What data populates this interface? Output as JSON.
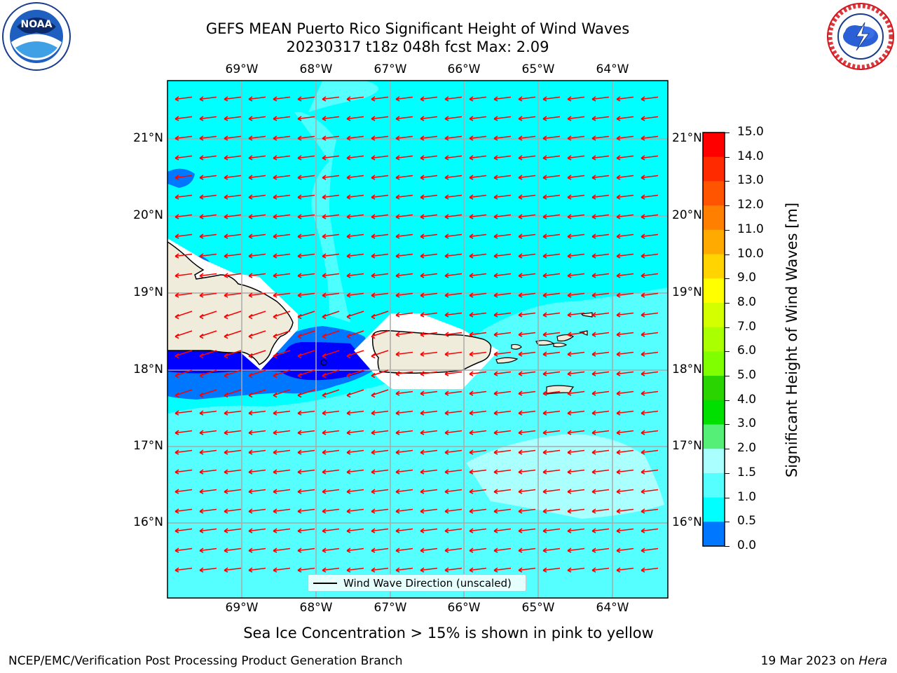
{
  "header": {
    "title_line1": "GEFS MEAN Puerto Rico Significant Height of Wind Waves",
    "title_line2": "20230317 t18z 048h fcst   Max: 2.09"
  },
  "logos": {
    "noaa": {
      "text": "NOAA",
      "icon": "noaa-logo"
    },
    "nws": {
      "text": "NATIONAL WEATHER SERVICE",
      "icon": "nws-logo"
    }
  },
  "map": {
    "lon_labels": [
      "69°W",
      "68°W",
      "67°W",
      "66°W",
      "65°W",
      "64°W"
    ],
    "lat_labels": [
      "21°N",
      "20°N",
      "19°N",
      "18°N",
      "17°N",
      "16°N"
    ],
    "legend_label": "Wind Wave Direction (unscaled)",
    "land_color": "#efecdc",
    "arrow_color": "#ff0000"
  },
  "colorbar": {
    "title": "Significant Height of Wind Waves [m]",
    "ticks": [
      "15.0",
      "14.0",
      "13.0",
      "12.0",
      "11.0",
      "10.0",
      "9.0",
      "8.0",
      "7.0",
      "6.0",
      "5.0",
      "4.0",
      "3.0",
      "2.0",
      "1.5",
      "1.0",
      "0.5",
      "0.0"
    ],
    "colors": [
      "#ff0000",
      "#ff2a00",
      "#ff5500",
      "#ff7f00",
      "#ffaa00",
      "#ffd400",
      "#ffff00",
      "#d4ff00",
      "#aaff00",
      "#7fff00",
      "#2ad400",
      "#00e000",
      "#55ee77",
      "#aaffff",
      "#55ffff",
      "#00ffff",
      "#0077ff",
      "#0000ff"
    ]
  },
  "notes": {
    "ice": "Sea Ice Concentration > 15% is shown in pink to yellow",
    "org": "NCEP/EMC/Verification Post Processing Product Generation Branch",
    "date": "19 Mar 2023 on ",
    "host": "Hera"
  }
}
